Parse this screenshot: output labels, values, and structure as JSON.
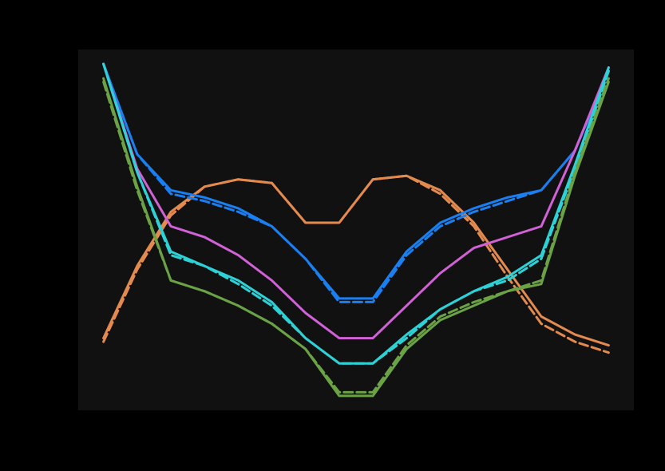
{
  "chart_data": {
    "type": "line",
    "title": "",
    "xlabel": "",
    "ylabel": "",
    "grid": false,
    "legend": "none",
    "x": [
      0,
      1,
      2,
      3,
      4,
      5,
      6,
      7,
      8,
      9,
      10,
      11,
      12,
      13,
      14,
      15
    ],
    "xlim": [
      -0.75,
      15.75
    ],
    "ylim": [
      0,
      100
    ],
    "colors": {
      "page_background": "#000000",
      "plot_background": "#111111"
    },
    "series": [
      {
        "color": "#e38a4f",
        "style": "solid",
        "values": [
          20,
          40,
          55,
          62,
          64,
          63,
          52,
          52,
          64,
          65,
          61,
          52,
          39,
          26,
          21,
          18
        ]
      },
      {
        "color": "#e38a4f",
        "style": "dashed",
        "values": [
          19,
          39,
          54,
          62,
          64,
          63,
          52,
          52,
          64,
          65,
          60,
          51,
          37,
          24,
          19,
          16
        ]
      },
      {
        "color": "#1a7ff0",
        "style": "solid",
        "values": [
          96,
          71,
          61,
          59,
          56,
          51,
          42,
          31,
          31,
          44,
          52,
          56,
          59,
          61,
          72,
          94
        ]
      },
      {
        "color": "#1a7ff0",
        "style": "dashed",
        "values": [
          96,
          71,
          60,
          58,
          55,
          51,
          42,
          30,
          30,
          43,
          51,
          55,
          58,
          61,
          72,
          94
        ]
      },
      {
        "color": "#d061d6",
        "style": "solid",
        "values": [
          96,
          67,
          51,
          48,
          43,
          36,
          27,
          20,
          20,
          29,
          38,
          45,
          48,
          51,
          72,
          95
        ]
      },
      {
        "color": "#2dd1d6",
        "style": "solid",
        "values": [
          96,
          66,
          44,
          40,
          36,
          30,
          20,
          13,
          13,
          21,
          28,
          33,
          37,
          43,
          68,
          95
        ]
      },
      {
        "color": "#2dd1d6",
        "style": "dashed",
        "values": [
          96,
          66,
          43,
          40,
          35,
          29,
          20,
          13,
          13,
          20,
          28,
          33,
          36,
          42,
          67,
          94
        ]
      },
      {
        "color": "#6aa245",
        "style": "solid",
        "values": [
          92,
          62,
          36,
          33,
          29,
          24,
          17,
          4,
          4,
          17,
          25,
          29,
          33,
          35,
          65,
          91
        ]
      },
      {
        "color": "#6aa245",
        "style": "dashed",
        "values": [
          91,
          61,
          36,
          33,
          29,
          24,
          17,
          5,
          5,
          18,
          26,
          30,
          33,
          36,
          66,
          92
        ]
      }
    ]
  }
}
